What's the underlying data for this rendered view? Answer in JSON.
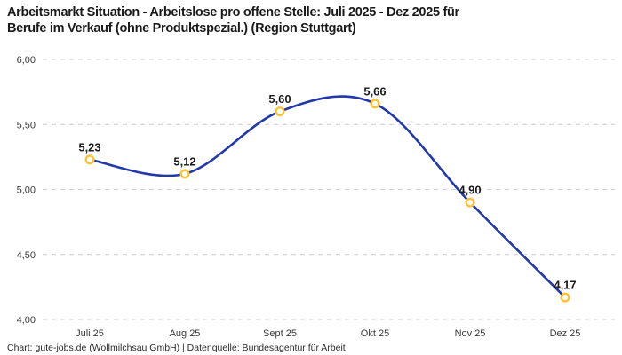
{
  "chart_data": {
    "type": "line",
    "title": "Arbeitsmarkt Situation - Arbeitslose pro offene Stelle: Juli 2025 - Dez 2025 für Berufe im Verkauf (ohne Produktspezial.) (Region Stuttgart)",
    "title_lines": [
      "Arbeitsmarkt Situation - Arbeitslose pro offene Stelle: Juli 2025 - Dez 2025 für",
      "Berufe im Verkauf (ohne Produktspezial.) (Region Stuttgart)"
    ],
    "categories": [
      "Juli 25",
      "Aug 25",
      "Sept 25",
      "Okt 25",
      "Nov 25",
      "Dez 25"
    ],
    "values": [
      5.23,
      5.12,
      5.6,
      5.66,
      4.9,
      4.17
    ],
    "value_labels": [
      "5,23",
      "5,12",
      "5,60",
      "5,66",
      "4,90",
      "4,17"
    ],
    "yticks": [
      4.0,
      4.5,
      5.0,
      5.5,
      6.0
    ],
    "ytick_labels": [
      "4,00",
      "4,50",
      "5,00",
      "5,50",
      "6,00"
    ],
    "ylim": [
      4.0,
      6.0
    ],
    "xlabel": "",
    "ylabel": "",
    "grid": "horizontal-dashed",
    "legend": "none",
    "source": "Chart: gute-jobs.de (Wollmilchsau GmbH) | Datenquelle: Bundesagentur für Arbeit"
  },
  "colors": {
    "line": "#2038A8",
    "marker_stroke": "#FFC233",
    "marker_fill": "#FFFFFF",
    "grid": "#CCCCCC",
    "tick_text": "#3A3A3A",
    "title_text": "#1A1A1A",
    "background": "#FFFFFF"
  }
}
